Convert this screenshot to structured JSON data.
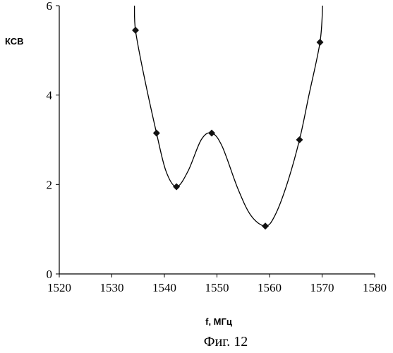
{
  "chart_data": {
    "type": "line",
    "title": "",
    "xlabel": "f, МГц",
    "ylabel": "КСВ",
    "caption": "Фиг. 12",
    "xlim": [
      1520,
      1580
    ],
    "ylim": [
      0,
      6
    ],
    "x_ticks": [
      1520,
      1530,
      1540,
      1550,
      1560,
      1570,
      1580
    ],
    "y_ticks": [
      0,
      2,
      4,
      6
    ],
    "grid": false,
    "legend": "none",
    "series": [
      {
        "markers": [
          {
            "x": 1534.5,
            "y": 5.45
          },
          {
            "x": 1538.5,
            "y": 3.15
          },
          {
            "x": 1542.3,
            "y": 1.95
          },
          {
            "x": 1549.0,
            "y": 3.15
          },
          {
            "x": 1559.2,
            "y": 1.07
          },
          {
            "x": 1565.7,
            "y": 3.0
          },
          {
            "x": 1569.6,
            "y": 5.18
          }
        ],
        "curve": [
          {
            "x": 1534.3,
            "y": 6.0
          },
          {
            "x": 1534.5,
            "y": 5.45
          },
          {
            "x": 1536.0,
            "y": 4.5
          },
          {
            "x": 1538.5,
            "y": 3.15
          },
          {
            "x": 1540.3,
            "y": 2.3
          },
          {
            "x": 1542.3,
            "y": 1.95
          },
          {
            "x": 1544.5,
            "y": 2.3
          },
          {
            "x": 1547.0,
            "y": 3.0
          },
          {
            "x": 1549.0,
            "y": 3.15
          },
          {
            "x": 1551.0,
            "y": 2.85
          },
          {
            "x": 1554.0,
            "y": 1.9
          },
          {
            "x": 1556.5,
            "y": 1.3
          },
          {
            "x": 1559.2,
            "y": 1.07
          },
          {
            "x": 1561.0,
            "y": 1.3
          },
          {
            "x": 1563.3,
            "y": 2.0
          },
          {
            "x": 1565.7,
            "y": 3.0
          },
          {
            "x": 1567.5,
            "y": 4.0
          },
          {
            "x": 1569.6,
            "y": 5.18
          },
          {
            "x": 1570.1,
            "y": 6.0
          }
        ]
      }
    ]
  }
}
